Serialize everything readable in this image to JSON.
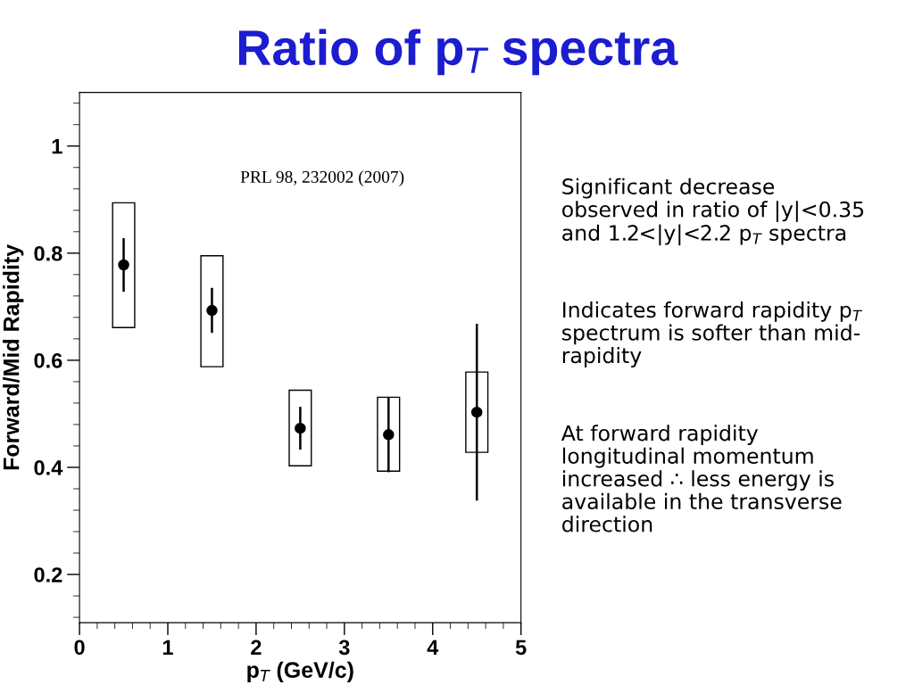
{
  "chart_data": {
    "type": "scatter",
    "title": "Ratio of p$_{T}$ spectra",
    "xlabel": "p$_{T}$ (GeV/c)",
    "ylabel": "Forward/Mid Rapidity",
    "x": [
      0.5,
      1.5,
      2.5,
      3.5,
      4.5
    ],
    "series": [
      {
        "type": "bar",
        "color": "#000000",
        "base": [
          0.661,
          0.588,
          0.403,
          0.393,
          0.428
        ],
        "values": [
          0.233,
          0.207,
          0.141,
          0.138,
          0.15
        ]
      },
      {
        "color": "#000000",
        "values": [
          0.778,
          0.693,
          0.473,
          0.461,
          0.503
        ],
        "errors": [
          0.05,
          0.042,
          0.04,
          0.07,
          0.165
        ]
      }
    ],
    "xlim": [
      0,
      5
    ],
    "xticks": [
      0,
      1,
      2,
      3,
      4,
      5
    ],
    "ylim": [
      0.11,
      1.1
    ],
    "yticks": [
      0.2,
      0.4,
      0.6,
      0.8,
      1
    ],
    "marker": "circle",
    "grid": false,
    "legend": false,
    "annotations": [
      "PRL 98, 232002 (2007)",
      "Significant decrease\nobserved in ratio of |y|<0.35\nand 1.2<|y|<2.2 p$_{T}$ spectra",
      "Indicates forward rapidity p$_{T}$\nspectrum is softer than mid-\nrapidity",
      "At forward rapidity\nlongitudinal momentum\nincreased ∴ less energy is\navailable in the transverse\ndirection"
    ]
  }
}
